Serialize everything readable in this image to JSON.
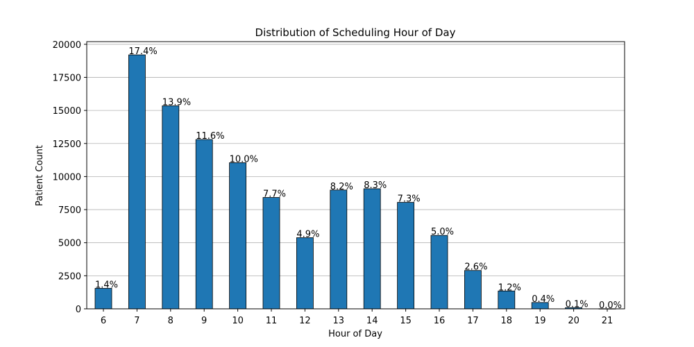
{
  "chart_data": {
    "type": "bar",
    "title": "Distribution of Scheduling Hour of Day",
    "xlabel": "Hour of Day",
    "ylabel": "Patient Count",
    "categories": [
      "6",
      "7",
      "8",
      "9",
      "10",
      "11",
      "12",
      "13",
      "14",
      "15",
      "16",
      "17",
      "18",
      "19",
      "20",
      "21"
    ],
    "values": [
      1550,
      19200,
      15350,
      12800,
      11050,
      8420,
      5380,
      8980,
      9080,
      8050,
      5550,
      2900,
      1350,
      480,
      90,
      10
    ],
    "labels": [
      "1.4%",
      "17.4%",
      "13.9%",
      "11.6%",
      "10.0%",
      "7.7%",
      "4.9%",
      "8.2%",
      "8.3%",
      "7.3%",
      "5.0%",
      "2.6%",
      "1.2%",
      "0.4%",
      "0.1%",
      "0.0%"
    ],
    "ylim": [
      0,
      20200
    ],
    "yticks": [
      0,
      2500,
      5000,
      7500,
      10000,
      12500,
      15000,
      17500,
      20000
    ],
    "grid": "y-axis",
    "colors": {
      "bar": "#1f77b4",
      "grid": "#b0b0b0"
    }
  }
}
